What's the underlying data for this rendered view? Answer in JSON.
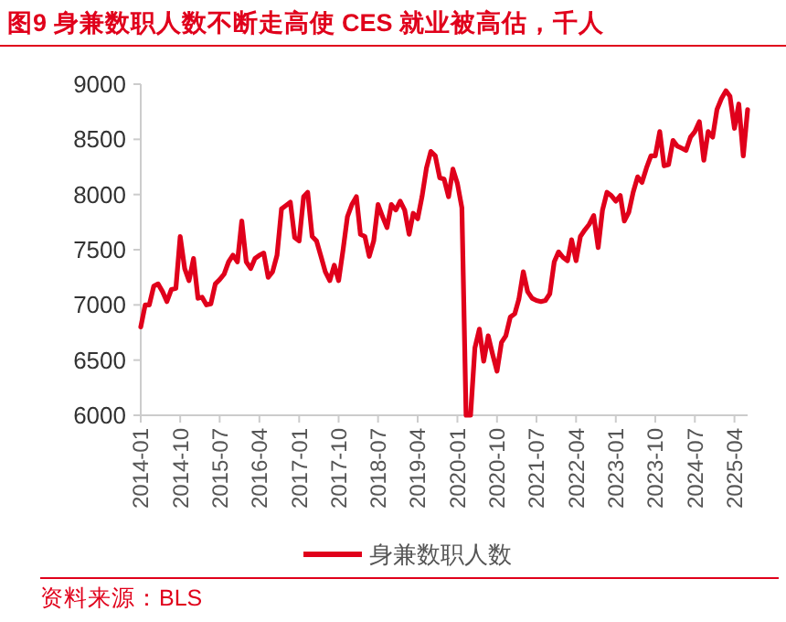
{
  "chart_data": {
    "type": "line",
    "title": "图9  身兼数职人数不断走高使 CES 就业被高估，千人",
    "x": [
      "2014-01",
      "2014-02",
      "2014-03",
      "2014-04",
      "2014-05",
      "2014-06",
      "2014-07",
      "2014-08",
      "2014-09",
      "2014-10",
      "2014-11",
      "2014-12",
      "2015-01",
      "2015-02",
      "2015-03",
      "2015-04",
      "2015-05",
      "2015-06",
      "2015-07",
      "2015-08",
      "2015-09",
      "2015-10",
      "2015-11",
      "2015-12",
      "2016-01",
      "2016-02",
      "2016-03",
      "2016-04",
      "2016-05",
      "2016-06",
      "2016-07",
      "2016-08",
      "2016-09",
      "2016-10",
      "2016-11",
      "2016-12",
      "2017-01",
      "2017-02",
      "2017-03",
      "2017-04",
      "2017-05",
      "2017-06",
      "2017-07",
      "2017-08",
      "2017-09",
      "2017-10",
      "2017-11",
      "2017-12",
      "2018-01",
      "2018-02",
      "2018-03",
      "2018-04",
      "2018-05",
      "2018-06",
      "2018-07",
      "2018-08",
      "2018-09",
      "2018-10",
      "2018-11",
      "2018-12",
      "2019-01",
      "2019-02",
      "2019-03",
      "2019-04",
      "2019-05",
      "2019-06",
      "2019-07",
      "2019-08",
      "2019-09",
      "2019-10",
      "2019-11",
      "2019-12",
      "2020-01",
      "2020-02",
      "2020-03",
      "2020-04",
      "2020-05",
      "2020-06",
      "2020-07",
      "2020-08",
      "2020-09",
      "2020-10",
      "2020-11",
      "2020-12",
      "2021-01",
      "2021-02",
      "2021-03",
      "2021-04",
      "2021-05",
      "2021-06",
      "2021-07",
      "2021-08",
      "2021-09",
      "2021-10",
      "2021-11",
      "2021-12",
      "2022-01",
      "2022-02",
      "2022-03",
      "2022-04",
      "2022-05",
      "2022-06",
      "2022-07",
      "2022-08",
      "2022-09",
      "2022-10",
      "2022-11",
      "2022-12",
      "2023-01",
      "2023-02",
      "2023-03",
      "2023-04",
      "2023-05",
      "2023-06",
      "2023-07",
      "2023-08",
      "2023-09",
      "2023-10",
      "2023-11",
      "2023-12",
      "2024-01",
      "2024-02",
      "2024-03",
      "2024-04",
      "2024-05",
      "2024-06",
      "2024-07",
      "2024-08",
      "2024-09",
      "2024-10",
      "2024-11",
      "2024-12",
      "2025-01",
      "2025-02",
      "2025-03",
      "2025-04",
      "2025-05",
      "2025-06",
      "2025-07"
    ],
    "series": [
      {
        "name": "身兼数职人数",
        "color": "#e0001b",
        "values": [
          6800,
          7000,
          7000,
          7170,
          7190,
          7120,
          7030,
          7140,
          7150,
          7620,
          7330,
          7220,
          7420,
          7060,
          7070,
          7000,
          7010,
          7190,
          7230,
          7280,
          7390,
          7450,
          7390,
          7760,
          7390,
          7330,
          7420,
          7450,
          7470,
          7250,
          7300,
          7450,
          7870,
          7900,
          7930,
          7610,
          7580,
          7980,
          8020,
          7620,
          7580,
          7440,
          7300,
          7220,
          7360,
          7220,
          7500,
          7800,
          7910,
          7980,
          7640,
          7620,
          7440,
          7580,
          7910,
          7800,
          7700,
          7910,
          7860,
          7940,
          7860,
          7640,
          7830,
          7780,
          7980,
          8240,
          8390,
          8350,
          8150,
          8140,
          7980,
          8230,
          8100,
          7880,
          6000,
          6000,
          6610,
          6780,
          6490,
          6720,
          6550,
          6400,
          6660,
          6720,
          6890,
          6920,
          7050,
          7300,
          7120,
          7060,
          7040,
          7030,
          7040,
          7100,
          7390,
          7480,
          7430,
          7400,
          7590,
          7400,
          7620,
          7680,
          7730,
          7810,
          7520,
          7860,
          8020,
          7990,
          7940,
          7990,
          7760,
          7840,
          8020,
          8160,
          8110,
          8240,
          8350,
          8350,
          8570,
          8260,
          8270,
          8490,
          8440,
          8420,
          8400,
          8520,
          8570,
          8660,
          8310,
          8570,
          8520,
          8770,
          8870,
          8940,
          8890,
          8600,
          8820,
          8350,
          8770
        ]
      }
    ],
    "xlim": [
      "2014-01",
      "2025-07"
    ],
    "xticks": [
      {
        "value": "2014-01",
        "label": "2014-01"
      },
      {
        "value": "2014-10",
        "label": "2014-10"
      },
      {
        "value": "2015-07",
        "label": "2015-07"
      },
      {
        "value": "2016-04",
        "label": "2016-04"
      },
      {
        "value": "2017-01",
        "label": "2017-01"
      },
      {
        "value": "2017-10",
        "label": "2017-10"
      },
      {
        "value": "2018-07",
        "label": "2018-07"
      },
      {
        "value": "2019-04",
        "label": "2019-04"
      },
      {
        "value": "2020-01",
        "label": "2020-01"
      },
      {
        "value": "2020-10",
        "label": "2020-10"
      },
      {
        "value": "2021-07",
        "label": "2021-07"
      },
      {
        "value": "2022-04",
        "label": "2022-04"
      },
      {
        "value": "2023-01",
        "label": "2023-01"
      },
      {
        "value": "2023-10",
        "label": "2023-10"
      },
      {
        "value": "2024-07",
        "label": "2024-07"
      },
      {
        "value": "2025-04",
        "label": "2025-04"
      }
    ],
    "ylim": [
      6000,
      9000
    ],
    "yticks": [
      6000,
      6500,
      7000,
      7500,
      8000,
      8500,
      9000
    ],
    "grid": false,
    "legend": "bottom",
    "marker": "none",
    "line_style": "solid",
    "annotations": [
      "资料来源：BLS"
    ]
  }
}
